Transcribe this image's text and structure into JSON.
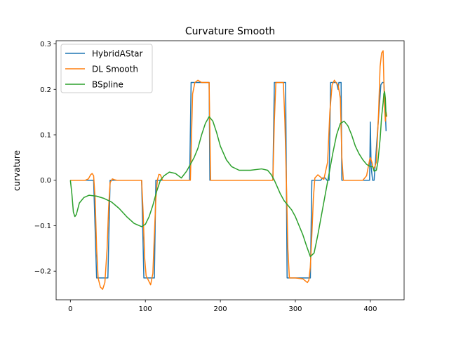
{
  "chart_data": {
    "type": "line",
    "title": "Curvature Smooth",
    "xlabel": "",
    "ylabel": "curvature",
    "xlim": [
      -19,
      445
    ],
    "ylim": [
      -0.263,
      0.307
    ],
    "xticks": [
      0,
      100,
      200,
      300,
      400
    ],
    "xtick_labels": [
      "0",
      "100",
      "200",
      "300",
      "400"
    ],
    "yticks": [
      -0.2,
      -0.1,
      0.0,
      0.1,
      0.2,
      0.3
    ],
    "ytick_labels": [
      "−0.2",
      "−0.1",
      "0.0",
      "0.1",
      "0.2",
      "0.3"
    ],
    "grid": false,
    "legend_position": "upper-left",
    "series": [
      {
        "name": "HybridAStar",
        "color": "#1f77b4",
        "x": [
          0,
          31,
          35,
          50,
          53,
          95,
          98,
          112,
          114,
          159,
          161,
          185,
          186,
          270,
          272,
          287,
          289,
          320,
          322,
          334,
          336,
          340,
          342,
          345,
          347,
          355,
          357,
          358,
          361,
          362,
          399,
          400,
          401,
          403,
          405,
          414,
          416,
          418,
          419,
          420,
          421
        ],
        "y": [
          0,
          0,
          -0.215,
          -0.215,
          0,
          0,
          -0.215,
          -0.215,
          0,
          0,
          0.215,
          0.215,
          0,
          0,
          0.215,
          0.215,
          -0.215,
          -0.215,
          0,
          0,
          0.005,
          0.005,
          0,
          0,
          0.215,
          0.215,
          0.2,
          0.215,
          0.215,
          0,
          0,
          0.128,
          0.03,
          0,
          0,
          0.21,
          0.215,
          0.215,
          0.18,
          0.15,
          0.108
        ]
      },
      {
        "name": "DL Smooth",
        "color": "#ff7f0e",
        "x": [
          0,
          20,
          24,
          27,
          29,
          31,
          33,
          35,
          37,
          40,
          43,
          46,
          49,
          51,
          53,
          56,
          59,
          62,
          70,
          95,
          97,
          99,
          101,
          104,
          107,
          110,
          112,
          114,
          116,
          118,
          120,
          123,
          128,
          160,
          163,
          166,
          170,
          175,
          180,
          185,
          187,
          270,
          272,
          274,
          278,
          284,
          286,
          288,
          290,
          292,
          300,
          310,
          316,
          318,
          320,
          322,
          324,
          326,
          330,
          335,
          338,
          343,
          346,
          349,
          352,
          354,
          357,
          360,
          362,
          364,
          375,
          390,
          395,
          399,
          400,
          402,
          404,
          406,
          408,
          411,
          413,
          415,
          417,
          418,
          419,
          420,
          421,
          422
        ],
        "y": [
          0,
          0,
          0.003,
          0.012,
          0.015,
          0.01,
          -0.04,
          -0.15,
          -0.215,
          -0.235,
          -0.24,
          -0.225,
          -0.15,
          -0.06,
          -0.005,
          0.003,
          0.001,
          0,
          0,
          0,
          -0.07,
          -0.17,
          -0.21,
          -0.22,
          -0.23,
          -0.205,
          -0.12,
          -0.04,
          0,
          0.013,
          0.012,
          0,
          0,
          0,
          0.19,
          0.215,
          0.22,
          0.215,
          0.215,
          0.215,
          0,
          0,
          0.13,
          0.215,
          0.215,
          0.215,
          0.13,
          0,
          -0.15,
          -0.215,
          -0.215,
          -0.217,
          -0.225,
          -0.22,
          -0.19,
          -0.12,
          -0.04,
          0.005,
          0.012,
          0.005,
          0.002,
          0.04,
          0.15,
          0.21,
          0.22,
          0.215,
          0.21,
          0.18,
          0.05,
          0,
          0,
          0,
          0.01,
          0.045,
          0.05,
          0.04,
          0.025,
          0.03,
          0.04,
          0.15,
          0.25,
          0.28,
          0.285,
          0.22,
          0.16,
          0.13,
          0.15,
          0.14
        ]
      },
      {
        "name": "BSpline",
        "color": "#2ca02c",
        "x": [
          0,
          2,
          4,
          6,
          8,
          12,
          18,
          25,
          35,
          45,
          55,
          65,
          75,
          85,
          95,
          100,
          105,
          110,
          115,
          120,
          125,
          132,
          140,
          148,
          155,
          160,
          165,
          170,
          175,
          180,
          185,
          190,
          195,
          200,
          208,
          215,
          225,
          240,
          255,
          263,
          268,
          272,
          276,
          280,
          285,
          290,
          295,
          300,
          305,
          310,
          315,
          320,
          325,
          330,
          340,
          350,
          355,
          360,
          365,
          370,
          375,
          380,
          385,
          390,
          395,
          400,
          403,
          405,
          408,
          410,
          413,
          415,
          417,
          418,
          419,
          420,
          421
        ],
        "y": [
          0,
          -0.03,
          -0.07,
          -0.08,
          -0.075,
          -0.05,
          -0.038,
          -0.033,
          -0.035,
          -0.04,
          -0.048,
          -0.062,
          -0.08,
          -0.095,
          -0.102,
          -0.097,
          -0.08,
          -0.055,
          -0.025,
          0.0,
          0.01,
          0.018,
          0.015,
          0.005,
          0.02,
          0.035,
          0.05,
          0.07,
          0.1,
          0.125,
          0.14,
          0.13,
          0.105,
          0.075,
          0.045,
          0.03,
          0.022,
          0.022,
          0.025,
          0.022,
          0.012,
          0.0,
          -0.015,
          -0.03,
          -0.045,
          -0.055,
          -0.065,
          -0.08,
          -0.1,
          -0.12,
          -0.145,
          -0.168,
          -0.16,
          -0.12,
          -0.03,
          0.06,
          0.1,
          0.125,
          0.13,
          0.12,
          0.1,
          0.075,
          0.058,
          0.045,
          0.035,
          0.03,
          0.03,
          0.02,
          0.022,
          0.04,
          0.09,
          0.14,
          0.17,
          0.19,
          0.195,
          0.18,
          0.14
        ]
      }
    ]
  }
}
